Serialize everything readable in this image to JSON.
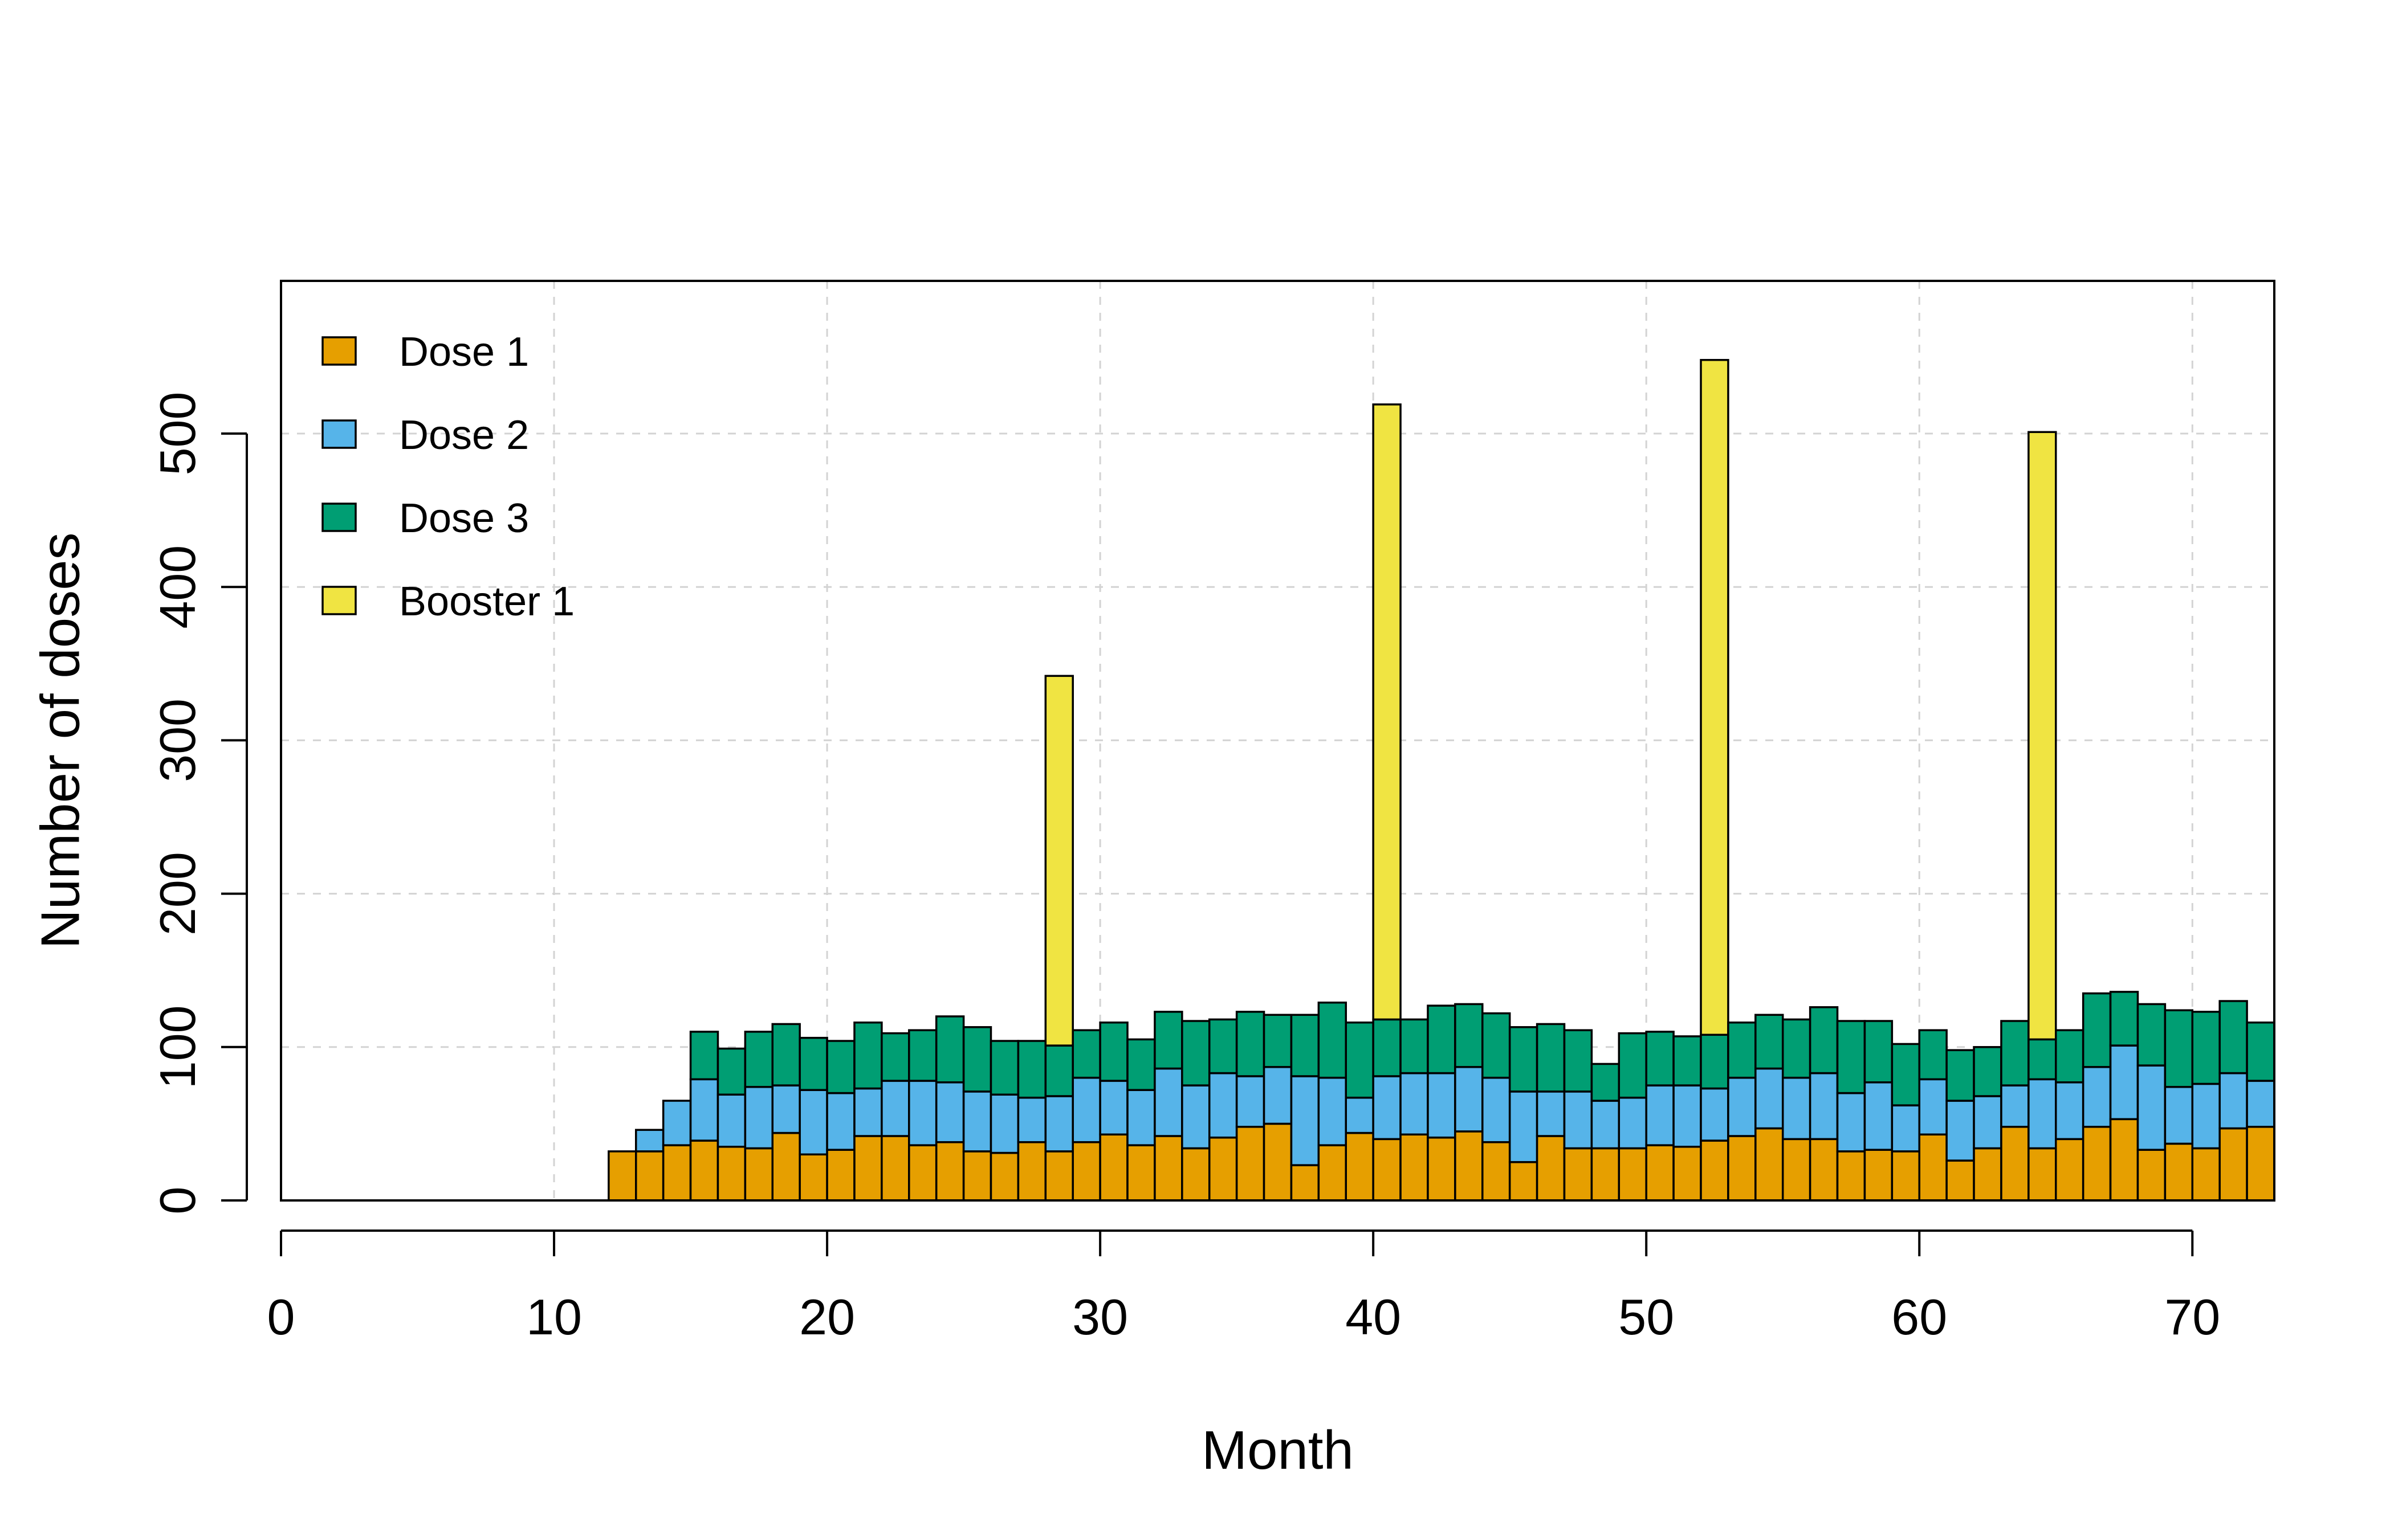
{
  "chart_data": {
    "type": "bar",
    "stacked": true,
    "xlabel": "Month",
    "ylabel": "Number of doses",
    "xlim": [
      0,
      73
    ],
    "ylim": [
      0,
      600
    ],
    "x_ticks": [
      "0",
      "10",
      "20",
      "30",
      "40",
      "50",
      "60",
      "70"
    ],
    "y_ticks": [
      "0",
      "100",
      "200",
      "300",
      "400",
      "500"
    ],
    "grid": true,
    "legend_position": "top-left",
    "months": [
      13,
      14,
      15,
      16,
      17,
      18,
      19,
      20,
      21,
      22,
      23,
      24,
      25,
      26,
      27,
      28,
      29,
      30,
      31,
      32,
      33,
      34,
      35,
      36,
      37,
      38,
      39,
      40,
      41,
      42,
      43,
      44,
      45,
      46,
      47,
      48,
      49,
      50,
      51,
      52,
      53,
      54,
      55,
      56,
      57,
      58,
      59,
      60,
      61,
      62,
      63,
      64,
      65,
      66,
      67,
      68,
      69,
      70,
      71,
      72,
      73
    ],
    "series": [
      {
        "name": "Dose 1",
        "color": "#E69F00",
        "values": [
          32,
          32,
          36,
          39,
          35,
          34,
          44,
          30,
          33,
          42,
          42,
          36,
          38,
          32,
          31,
          38,
          32,
          38,
          43,
          36,
          42,
          34,
          41,
          48,
          50,
          23,
          36,
          44,
          40,
          43,
          41,
          45,
          38,
          25,
          42,
          34,
          34,
          34,
          36,
          35,
          39,
          42,
          47,
          40,
          40,
          32,
          33,
          32,
          43,
          26,
          34,
          48,
          34,
          40,
          48,
          53,
          33,
          37,
          34,
          47,
          48
        ]
      },
      {
        "name": "Dose 2",
        "color": "#56B4E9",
        "values": [
          0,
          14,
          29,
          40,
          34,
          40,
          31,
          42,
          37,
          31,
          36,
          42,
          39,
          39,
          38,
          29,
          36,
          42,
          35,
          36,
          44,
          41,
          42,
          33,
          37,
          58,
          44,
          23,
          41,
          40,
          42,
          42,
          42,
          46,
          29,
          37,
          31,
          33,
          39,
          40,
          34,
          38,
          39,
          40,
          43,
          38,
          44,
          30,
          36,
          39,
          34,
          27,
          45,
          37,
          39,
          48,
          55,
          37,
          42,
          36,
          30
        ]
      },
      {
        "name": "Dose 3",
        "color": "#009E73",
        "values": [
          0,
          0,
          0,
          31,
          30,
          36,
          40,
          34,
          34,
          43,
          31,
          33,
          43,
          42,
          35,
          37,
          33,
          31,
          38,
          33,
          37,
          42,
          35,
          42,
          34,
          40,
          49,
          49,
          37,
          35,
          44,
          41,
          42,
          42,
          44,
          40,
          24,
          42,
          35,
          32,
          35,
          36,
          35,
          38,
          43,
          47,
          40,
          40,
          32,
          33,
          32,
          42,
          26,
          34,
          48,
          35,
          40,
          50,
          47,
          47,
          38
        ]
      },
      {
        "name": "Booster 1",
        "color": "#F0E442",
        "values": [
          0,
          0,
          0,
          0,
          0,
          0,
          0,
          0,
          0,
          0,
          0,
          0,
          0,
          0,
          0,
          0,
          241,
          0,
          0,
          0,
          0,
          0,
          0,
          0,
          0,
          0,
          0,
          0,
          401,
          0,
          0,
          0,
          0,
          0,
          0,
          0,
          0,
          0,
          0,
          0,
          440,
          0,
          0,
          0,
          0,
          0,
          0,
          0,
          0,
          0,
          0,
          0,
          396,
          0,
          0,
          0,
          0,
          0,
          0,
          0,
          0
        ]
      }
    ]
  }
}
